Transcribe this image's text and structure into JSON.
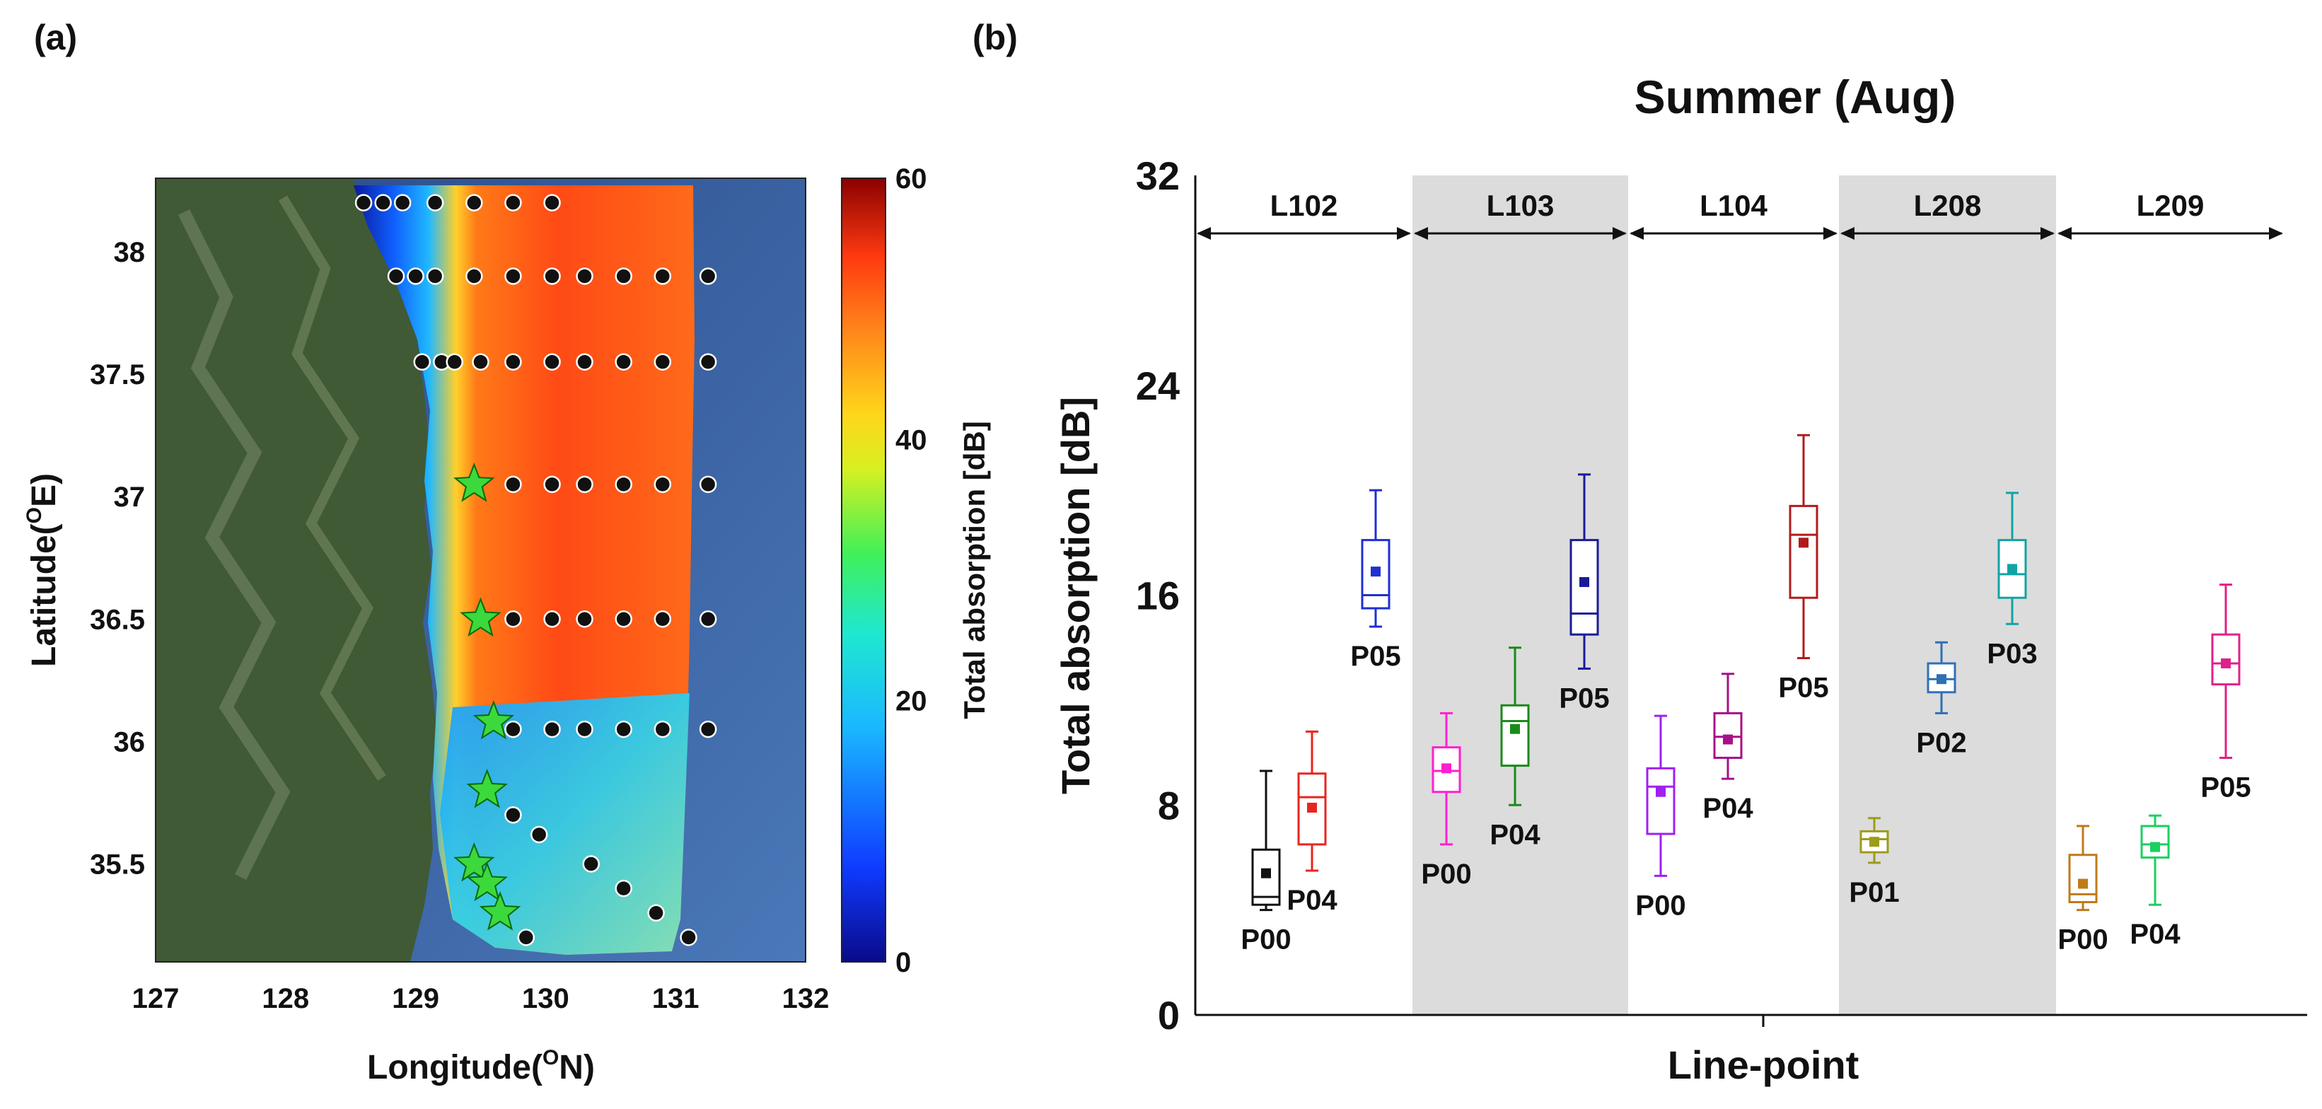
{
  "panels": {
    "a": "(a)",
    "b": "(b)"
  },
  "chart_data": [
    {
      "type": "heatmap",
      "title": "",
      "xlabel": "Longitude(ON)",
      "xlabel_main": "Longitude(",
      "xlabel_sup": "O",
      "xlabel_end": "N)",
      "ylabel": "Latitude(OE)",
      "ylabel_main": "Latitude(",
      "ylabel_sup": "O",
      "ylabel_end": "E)",
      "xlim": [
        127,
        132
      ],
      "ylim": [
        35.1,
        38.3
      ],
      "xticks": [
        "127",
        "128",
        "129",
        "130",
        "131",
        "132"
      ],
      "yticks": [
        "35.5",
        "36",
        "36.5",
        "37",
        "37.5",
        "38"
      ],
      "colorbar": {
        "label": "Total absorption [dB]",
        "range": [
          0,
          60
        ],
        "ticks": [
          "0",
          "20",
          "40",
          "60"
        ]
      },
      "stations": [
        [
          128.6,
          38.2
        ],
        [
          128.75,
          38.2
        ],
        [
          128.9,
          38.2
        ],
        [
          129.15,
          38.2
        ],
        [
          129.45,
          38.2
        ],
        [
          129.75,
          38.2
        ],
        [
          130.05,
          38.2
        ],
        [
          128.85,
          37.9
        ],
        [
          129.0,
          37.9
        ],
        [
          129.15,
          37.9
        ],
        [
          129.45,
          37.9
        ],
        [
          129.75,
          37.9
        ],
        [
          130.05,
          37.9
        ],
        [
          130.3,
          37.9
        ],
        [
          130.6,
          37.9
        ],
        [
          130.9,
          37.9
        ],
        [
          131.25,
          37.9
        ],
        [
          129.05,
          37.55
        ],
        [
          129.2,
          37.55
        ],
        [
          129.3,
          37.55
        ],
        [
          129.5,
          37.55
        ],
        [
          129.75,
          37.55
        ],
        [
          130.05,
          37.55
        ],
        [
          130.3,
          37.55
        ],
        [
          130.6,
          37.55
        ],
        [
          130.9,
          37.55
        ],
        [
          131.25,
          37.55
        ],
        [
          129.75,
          37.05
        ],
        [
          130.05,
          37.05
        ],
        [
          130.3,
          37.05
        ],
        [
          130.6,
          37.05
        ],
        [
          130.9,
          37.05
        ],
        [
          131.25,
          37.05
        ],
        [
          129.75,
          36.5
        ],
        [
          130.05,
          36.5
        ],
        [
          130.3,
          36.5
        ],
        [
          130.6,
          36.5
        ],
        [
          130.9,
          36.5
        ],
        [
          131.25,
          36.5
        ],
        [
          129.75,
          36.05
        ],
        [
          130.05,
          36.05
        ],
        [
          130.3,
          36.05
        ],
        [
          130.6,
          36.05
        ],
        [
          130.9,
          36.05
        ],
        [
          131.25,
          36.05
        ],
        [
          129.75,
          35.7
        ],
        [
          129.95,
          35.62
        ],
        [
          130.35,
          35.5
        ],
        [
          130.6,
          35.4
        ],
        [
          130.85,
          35.3
        ],
        [
          131.1,
          35.2
        ],
        [
          129.85,
          35.2
        ]
      ],
      "star_stations": [
        [
          129.45,
          37.05
        ],
        [
          129.5,
          36.5
        ],
        [
          129.6,
          36.08
        ],
        [
          129.55,
          35.8
        ],
        [
          129.45,
          35.5
        ],
        [
          129.55,
          35.42
        ],
        [
          129.65,
          35.3
        ]
      ]
    },
    {
      "type": "box",
      "title": "Summer (Aug)",
      "xlabel": "Line-point",
      "ylabel": "Total absorption [dB]",
      "ylim": [
        0,
        32
      ],
      "yticks": [
        "0",
        "8",
        "16",
        "24",
        "32"
      ],
      "groups": [
        {
          "name": "L102",
          "shaded": false
        },
        {
          "name": "L103",
          "shaded": true
        },
        {
          "name": "L104",
          "shaded": false
        },
        {
          "name": "L208",
          "shaded": true
        },
        {
          "name": "L209",
          "shaded": false
        }
      ],
      "series": [
        {
          "group": "L102",
          "name": "P00",
          "color": "#111111",
          "whisker_low": 4.0,
          "q1": 4.2,
          "median": 4.5,
          "q3": 6.3,
          "whisker_high": 9.3,
          "mean": 5.4
        },
        {
          "group": "L102",
          "name": "P04",
          "color": "#e8251f",
          "whisker_low": 5.5,
          "q1": 6.5,
          "median": 8.3,
          "q3": 9.2,
          "whisker_high": 10.8,
          "mean": 7.9
        },
        {
          "group": "L102",
          "name": "P05",
          "color": "#1f2fd6",
          "whisker_low": 14.8,
          "q1": 15.5,
          "median": 16.0,
          "q3": 18.1,
          "whisker_high": 20.0,
          "mean": 16.9
        },
        {
          "group": "L103",
          "name": "P00",
          "color": "#ff1fd0",
          "whisker_low": 6.5,
          "q1": 8.5,
          "median": 9.3,
          "q3": 10.2,
          "whisker_high": 11.5,
          "mean": 9.4
        },
        {
          "group": "L103",
          "name": "P04",
          "color": "#1a8a1a",
          "whisker_low": 8.0,
          "q1": 9.5,
          "median": 11.2,
          "q3": 11.8,
          "whisker_high": 14.0,
          "mean": 10.9
        },
        {
          "group": "L103",
          "name": "P05",
          "color": "#1a1a9a",
          "whisker_low": 13.2,
          "q1": 14.5,
          "median": 15.3,
          "q3": 18.1,
          "whisker_high": 20.6,
          "mean": 16.5
        },
        {
          "group": "L104",
          "name": "P00",
          "color": "#a020f0",
          "whisker_low": 5.3,
          "q1": 6.9,
          "median": 8.7,
          "q3": 9.4,
          "whisker_high": 11.4,
          "mean": 8.5
        },
        {
          "group": "L104",
          "name": "P04",
          "color": "#a8108a",
          "whisker_low": 9.0,
          "q1": 9.8,
          "median": 10.6,
          "q3": 11.5,
          "whisker_high": 13.0,
          "mean": 10.5
        },
        {
          "group": "L104",
          "name": "P05",
          "color": "#b31b1b",
          "whisker_low": 13.6,
          "q1": 15.9,
          "median": 18.3,
          "q3": 19.4,
          "whisker_high": 22.1,
          "mean": 18.0
        },
        {
          "group": "L208",
          "name": "P01",
          "color": "#9c9c1a",
          "whisker_low": 5.8,
          "q1": 6.2,
          "median": 6.7,
          "q3": 7.0,
          "whisker_high": 7.5,
          "mean": 6.6
        },
        {
          "group": "L208",
          "name": "P02",
          "color": "#2f70b5",
          "whisker_low": 11.5,
          "q1": 12.3,
          "median": 12.8,
          "q3": 13.4,
          "whisker_high": 14.2,
          "mean": 12.8
        },
        {
          "group": "L208",
          "name": "P03",
          "color": "#13a3a3",
          "whisker_low": 14.9,
          "q1": 15.9,
          "median": 16.8,
          "q3": 18.1,
          "whisker_high": 19.9,
          "mean": 17.0
        },
        {
          "group": "L209",
          "name": "P00",
          "color": "#c07a1a",
          "whisker_low": 4.0,
          "q1": 4.3,
          "median": 4.6,
          "q3": 6.1,
          "whisker_high": 7.2,
          "mean": 5.0
        },
        {
          "group": "L209",
          "name": "P04",
          "color": "#1ad060",
          "whisker_low": 4.2,
          "q1": 6.0,
          "median": 6.5,
          "q3": 7.2,
          "whisker_high": 7.6,
          "mean": 6.4
        },
        {
          "group": "L209",
          "name": "P05",
          "color": "#e0208a",
          "whisker_low": 9.8,
          "q1": 12.6,
          "median": 13.4,
          "q3": 14.5,
          "whisker_high": 16.4,
          "mean": 13.4
        }
      ]
    }
  ]
}
